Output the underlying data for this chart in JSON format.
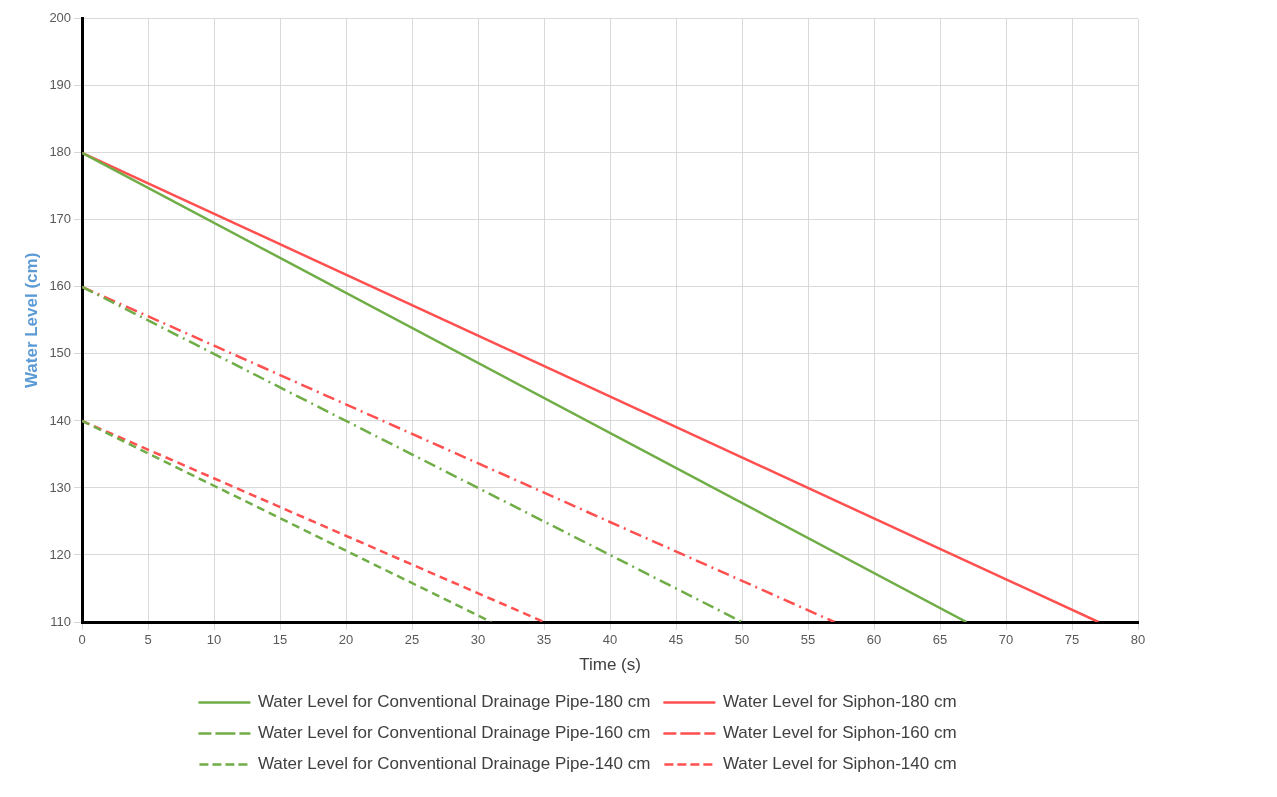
{
  "chart_data": {
    "type": "line",
    "xlabel": "Time (s)",
    "ylabel": "Water Level (cm)",
    "xlim": [
      0,
      80
    ],
    "xticks": [
      0,
      5,
      10,
      15,
      20,
      25,
      30,
      35,
      40,
      45,
      50,
      55,
      60,
      65,
      70,
      75,
      80
    ],
    "ylim": [
      110,
      200
    ],
    "yticks": [
      110,
      120,
      130,
      140,
      150,
      160,
      170,
      180,
      190,
      200
    ],
    "grid": true,
    "legend": "bottom",
    "marker": "none",
    "series": [
      {
        "name": "Water Level for Conventional Drainage Pipe-180 cm",
        "color": "#70ad47",
        "line_style": "solid",
        "x": [
          0,
          67
        ],
        "values": [
          180,
          110
        ]
      },
      {
        "name": "Water Level for Siphon-180 cm",
        "color": "#ff5050",
        "line_style": "solid",
        "x": [
          0,
          77
        ],
        "values": [
          180,
          110
        ]
      },
      {
        "name": "Water Level for Conventional Drainage Pipe-160 cm",
        "color": "#70ad47",
        "line_style": "dashdot",
        "x": [
          0,
          50
        ],
        "values": [
          160,
          110
        ]
      },
      {
        "name": "Water Level for Siphon-160 cm",
        "color": "#ff5050",
        "line_style": "dashdot",
        "x": [
          0,
          57
        ],
        "values": [
          160,
          110
        ]
      },
      {
        "name": "Water Level for Conventional Drainage Pipe-140 cm",
        "color": "#70ad47",
        "line_style": "dashed",
        "x": [
          0,
          31
        ],
        "values": [
          140,
          110
        ]
      },
      {
        "name": "Water Level for Siphon-140 cm",
        "color": "#ff5050",
        "line_style": "dashed",
        "x": [
          0,
          35
        ],
        "values": [
          140,
          110
        ]
      }
    ]
  }
}
